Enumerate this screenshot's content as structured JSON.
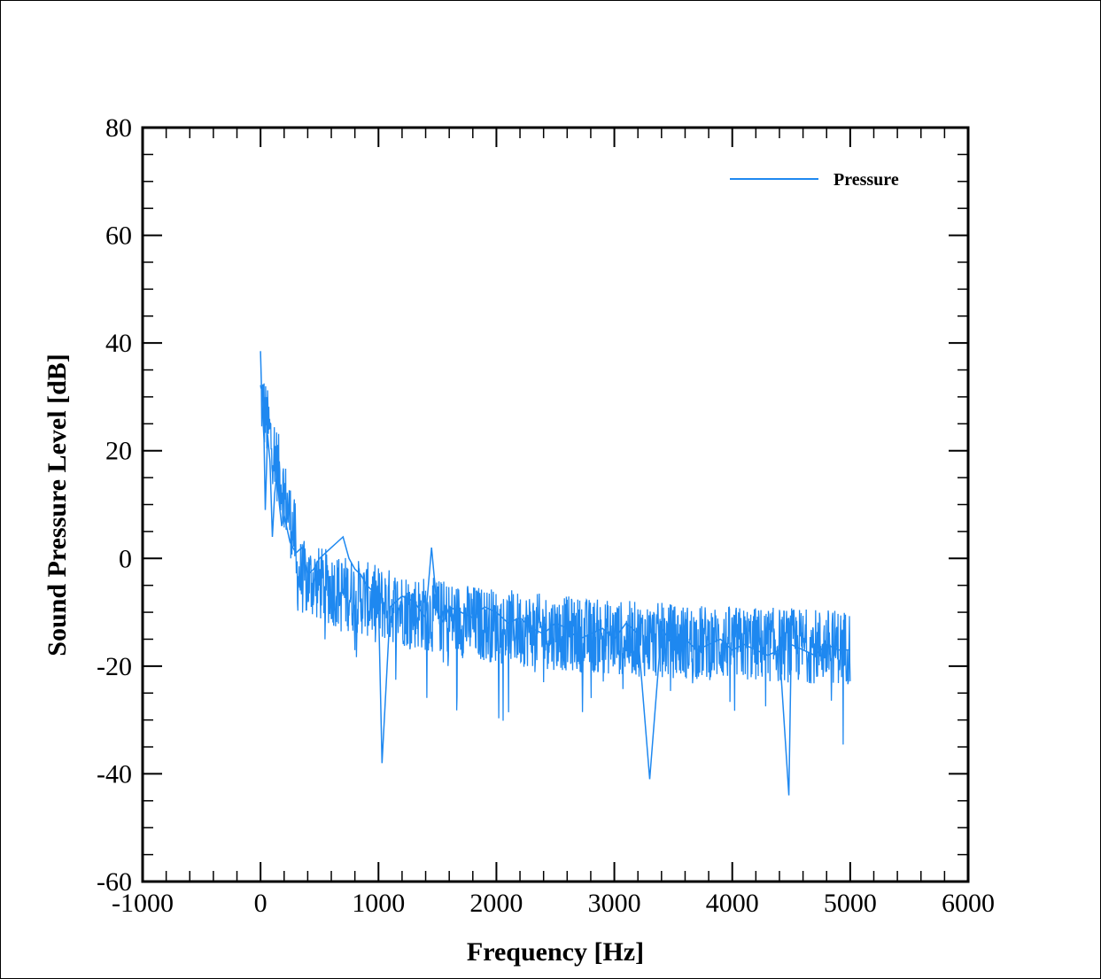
{
  "chart_data": {
    "type": "line",
    "xlabel": "Frequency [Hz]",
    "ylabel": "Sound Pressure Level [dB]",
    "xlim": [
      -1000,
      6000
    ],
    "ylim": [
      -60,
      80
    ],
    "x_ticks": [
      -1000,
      0,
      1000,
      2000,
      3000,
      4000,
      5000,
      6000
    ],
    "y_ticks": [
      -60,
      -40,
      -20,
      0,
      20,
      40,
      60,
      80
    ],
    "x_tick_labels": [
      "-1000",
      "0",
      "1000",
      "2000",
      "3000",
      "4000",
      "5000",
      "6000"
    ],
    "y_tick_labels": [
      "-60",
      "-40",
      "-20",
      "0",
      "20",
      "40",
      "60",
      "80"
    ],
    "legend": {
      "position": "top-right",
      "entries": [
        "Pressure"
      ]
    },
    "grid": false,
    "series": [
      {
        "name": "Pressure",
        "color": "#1e88f0",
        "x": [
          0,
          10,
          20,
          30,
          40,
          60,
          80,
          100,
          120,
          140,
          160,
          180,
          200,
          250,
          300,
          350,
          400,
          450,
          500,
          550,
          600,
          650,
          700,
          750,
          800,
          850,
          900,
          950,
          1000,
          1030,
          1100,
          1200,
          1300,
          1400,
          1450,
          1500,
          1550,
          1600,
          1700,
          1800,
          1900,
          2000,
          2100,
          2200,
          2300,
          2400,
          2500,
          2600,
          2700,
          2800,
          2900,
          3000,
          3100,
          3200,
          3300,
          3400,
          3500,
          3600,
          3700,
          3800,
          3900,
          4000,
          4100,
          4200,
          4300,
          4400,
          4480,
          4500,
          4600,
          4700,
          4800,
          4900,
          5000
        ],
        "y": [
          38.5,
          30,
          26,
          22,
          9,
          23,
          18,
          4,
          12,
          16,
          10,
          6,
          8,
          3,
          1,
          2,
          -3,
          -2,
          0,
          1,
          2,
          3,
          4,
          0,
          -2,
          -3,
          -5,
          -6,
          -8,
          -38,
          -9,
          -7,
          -8,
          -11,
          2,
          -10,
          -12,
          -9,
          -10,
          -11,
          -9,
          -10,
          -12,
          -11,
          -13,
          -14,
          -12,
          -13,
          -15,
          -14,
          -13,
          -15,
          -12,
          -14,
          -41,
          -13,
          -16,
          -15,
          -17,
          -16,
          -15,
          -17,
          -16,
          -17,
          -18,
          -17,
          -44,
          -16,
          -17,
          -18,
          -16,
          -17,
          -17
        ]
      }
    ]
  }
}
